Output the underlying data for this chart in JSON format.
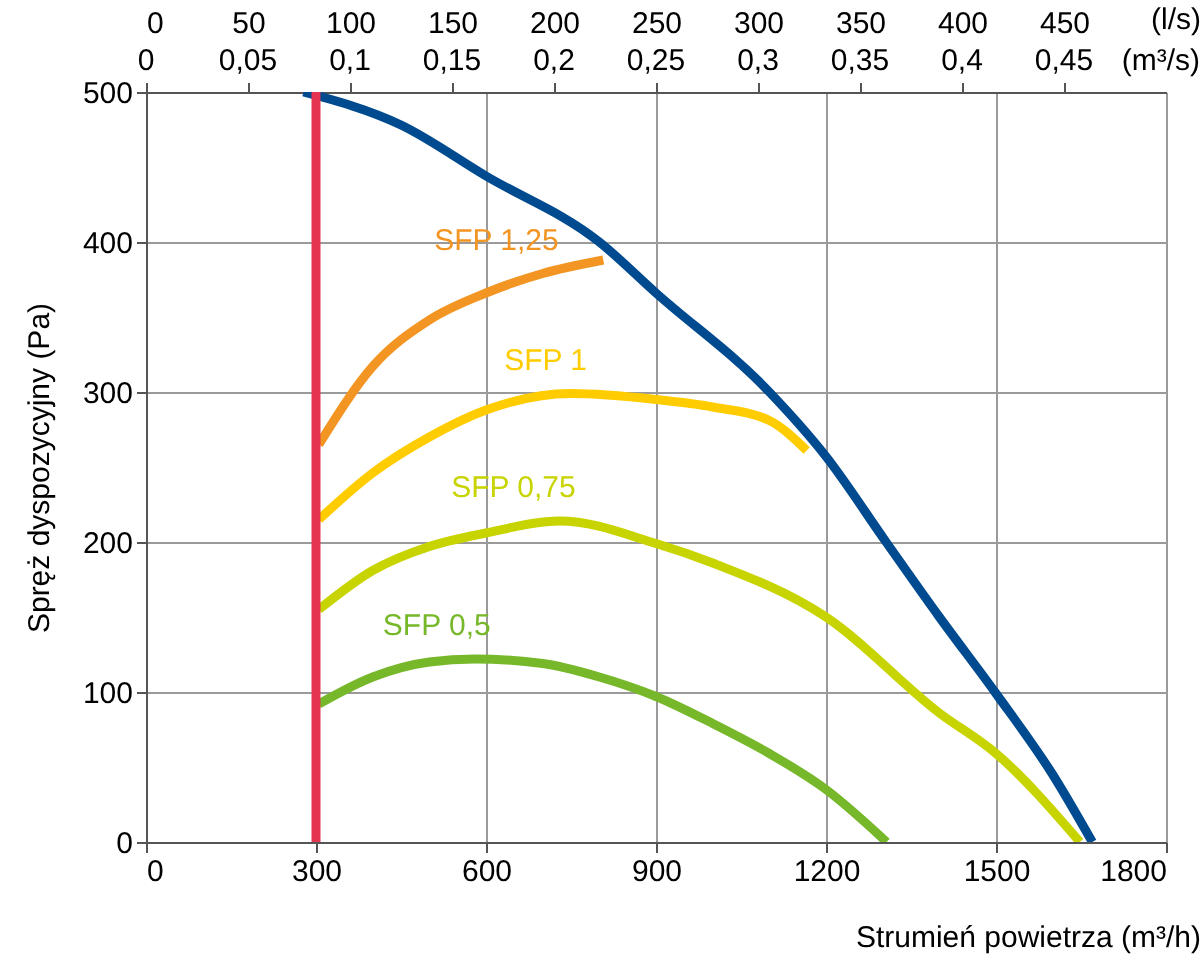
{
  "chart_data": {
    "type": "line",
    "xlabel": "Strumień powietrza (m³/h)",
    "ylabel": "Spręż dyspozycyjny (Pa)",
    "x2label": "(l/s)",
    "annotations": [
      "0",
      "0,05",
      "0,1",
      "0,15",
      "0,2",
      "0,25",
      "0,3",
      "0,35",
      "0,4",
      "0,45",
      "(m³/s)"
    ],
    "xlim": [
      0,
      1800
    ],
    "xticks": [
      0,
      300,
      600,
      900,
      1200,
      1500,
      1800
    ],
    "ylim": [
      0,
      500
    ],
    "yticks": [
      0,
      100,
      200,
      300,
      400,
      500
    ],
    "x2lim": [
      0,
      500
    ],
    "x2ticks": [
      0,
      50,
      100,
      150,
      200,
      250,
      300,
      350,
      400,
      450
    ],
    "grid": true,
    "series": [
      {
        "color": "#004a8f",
        "x": [
          278,
          450,
          600,
          800,
          900,
          1100,
          1200,
          1306,
          1400,
          1500,
          1600,
          1670
        ],
        "values": [
          500,
          478,
          444,
          400,
          366,
          300,
          257,
          200,
          150,
          99,
          45,
          0
        ]
      },
      {
        "name": "SFP 1,25",
        "color": "#f39523",
        "x": [
          305,
          400,
          500,
          600,
          700,
          807
        ],
        "values": [
          265,
          317,
          348,
          366,
          379,
          388
        ]
      },
      {
        "name": "SFP 1",
        "color": "#ffcc00",
        "x": [
          305,
          400,
          500,
          600,
          750,
          900,
          1000,
          1100,
          1166
        ],
        "values": [
          215,
          246,
          270,
          288,
          299,
          295,
          290,
          281,
          261
        ]
      },
      {
        "name": "SFP 0,75",
        "color": "#c8d400",
        "x": [
          305,
          400,
          500,
          600,
          730,
          900,
          1000,
          1200,
          1400,
          1500,
          1648
        ],
        "values": [
          155,
          181,
          197,
          206,
          214,
          199,
          186,
          150,
          86,
          59,
          0
        ]
      },
      {
        "name": "SFP 0,5",
        "color": "#76b82a",
        "x": [
          305,
          400,
          500,
          580,
          700,
          800,
          900,
          1000,
          1100,
          1200,
          1307
        ],
        "values": [
          92,
          110,
          120,
          122,
          119,
          110,
          97,
          79,
          59,
          35,
          0
        ]
      },
      {
        "color": "#e5344f",
        "x": [
          300,
          300
        ],
        "values": [
          0,
          500
        ]
      }
    ]
  }
}
